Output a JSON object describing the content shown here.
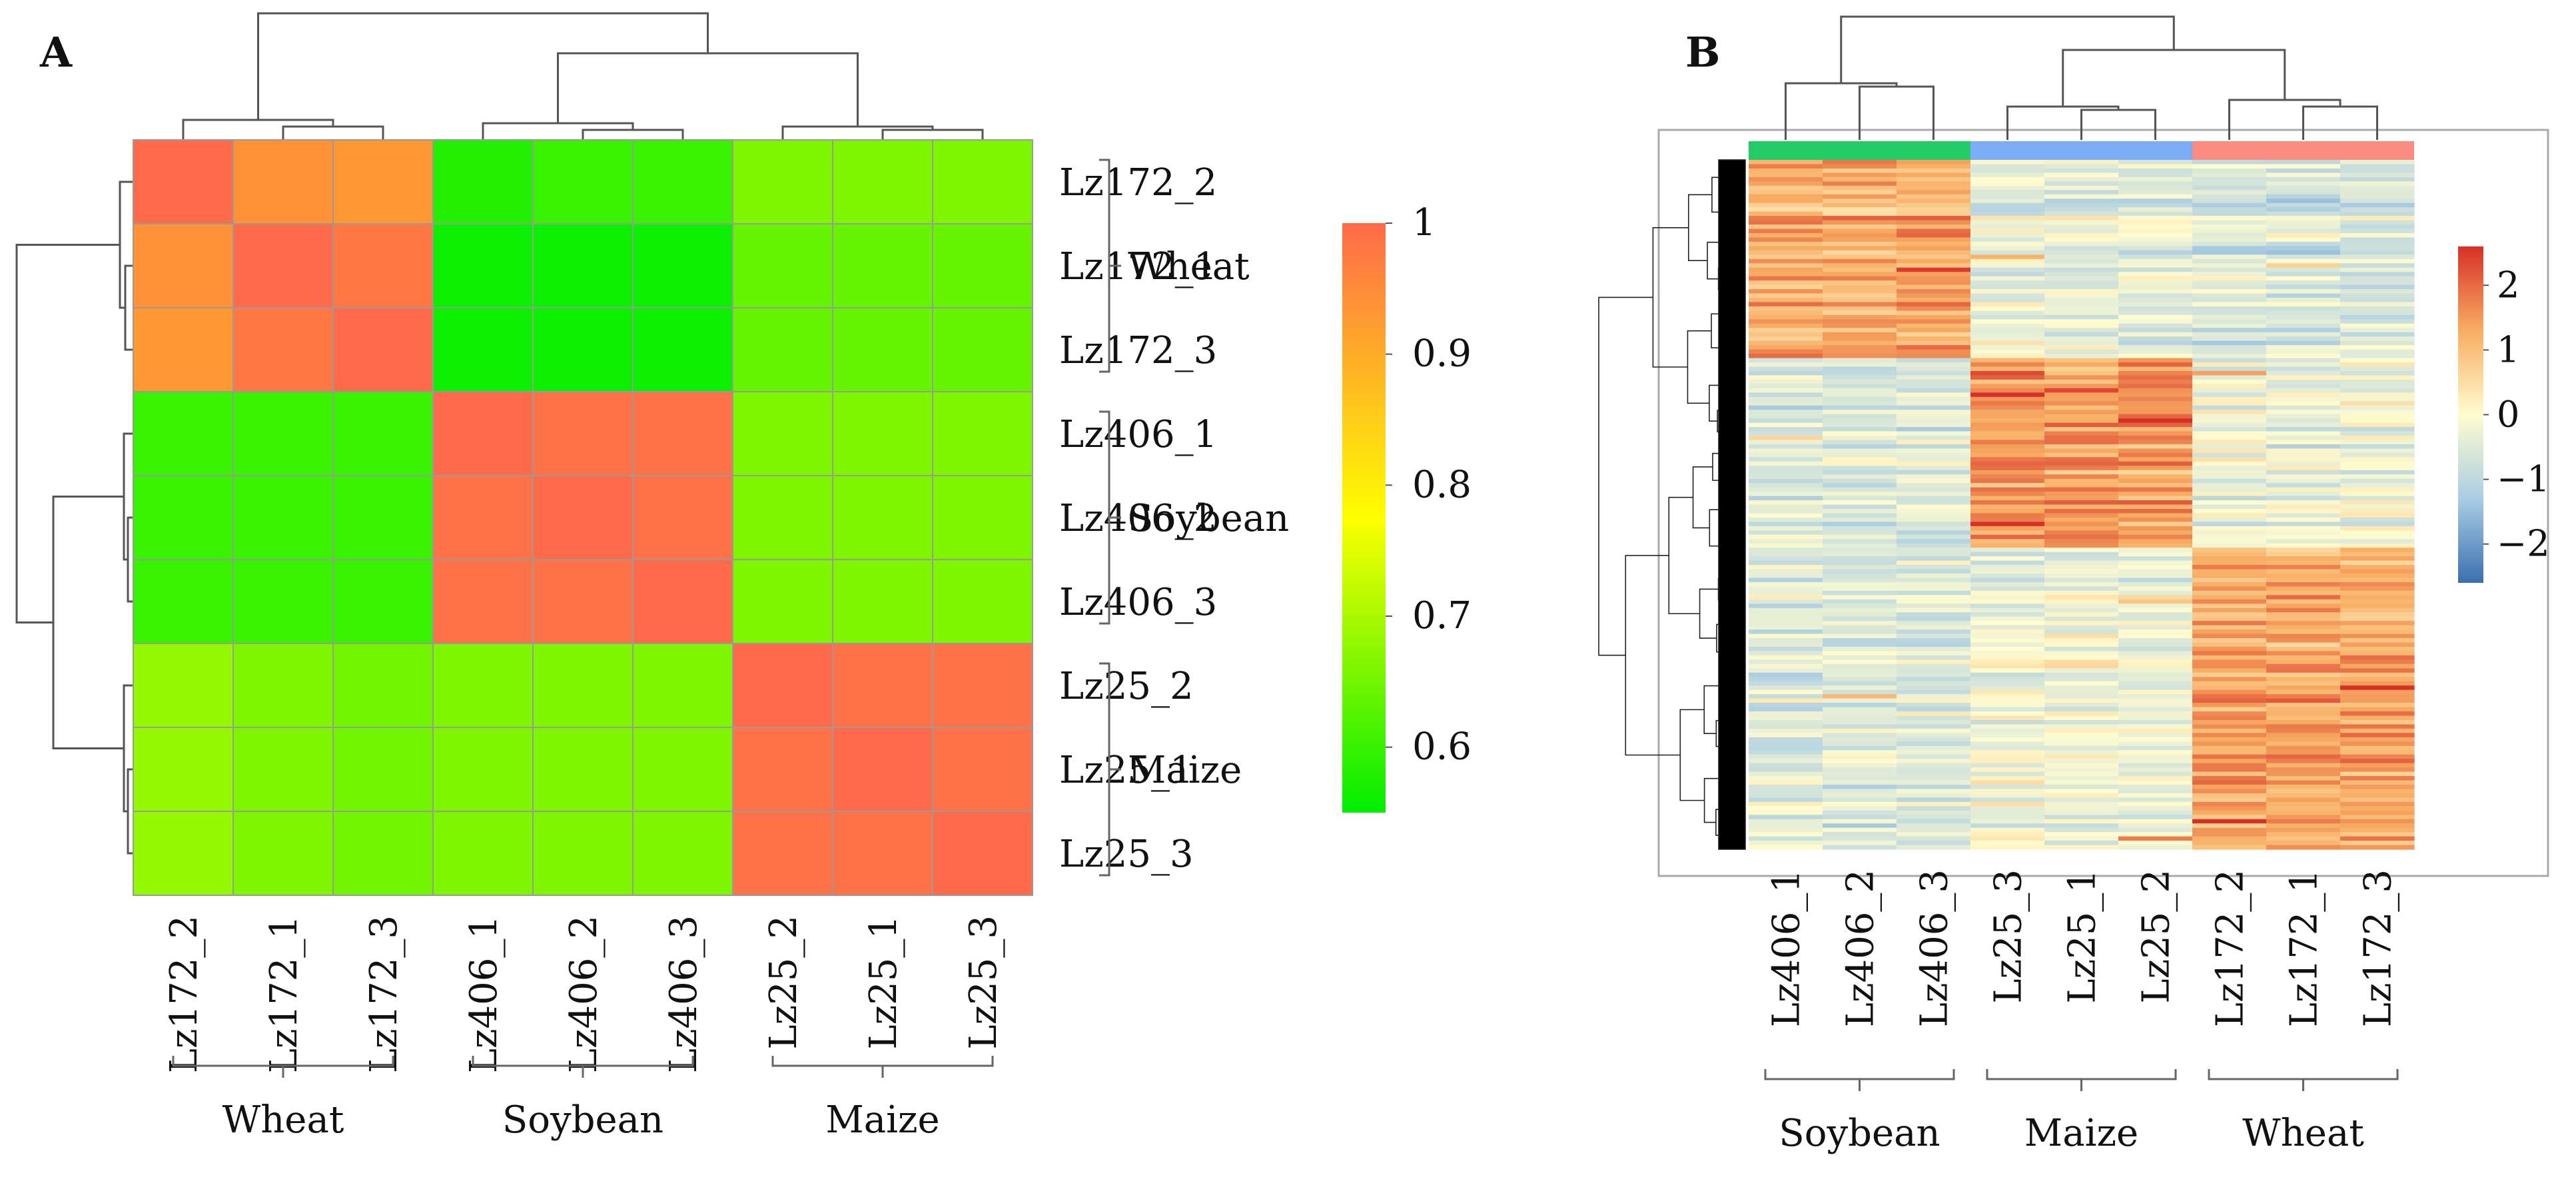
{
  "panels": {
    "a_label": "A",
    "b_label": "B"
  },
  "chart_data": [
    {
      "type": "heatmap",
      "panel": "A",
      "rows": [
        "Lz172_2",
        "Lz172_1",
        "Lz172_3",
        "Lz406_1",
        "Lz406_2",
        "Lz406_3",
        "Lz25_2",
        "Lz25_1",
        "Lz25_3"
      ],
      "columns": [
        "Lz172_2",
        "Lz172_1",
        "Lz172_3",
        "Lz406_1",
        "Lz406_2",
        "Lz406_3",
        "Lz25_2",
        "Lz25_1",
        "Lz25_3"
      ],
      "values": [
        [
          1.0,
          0.94,
          0.93,
          0.58,
          0.6,
          0.6,
          0.66,
          0.66,
          0.66
        ],
        [
          0.94,
          1.0,
          0.98,
          0.56,
          0.56,
          0.56,
          0.64,
          0.64,
          0.64
        ],
        [
          0.93,
          0.98,
          1.0,
          0.56,
          0.56,
          0.56,
          0.64,
          0.64,
          0.64
        ],
        [
          0.6,
          0.6,
          0.6,
          1.0,
          0.99,
          0.99,
          0.66,
          0.66,
          0.66
        ],
        [
          0.6,
          0.6,
          0.6,
          0.99,
          1.0,
          0.99,
          0.66,
          0.66,
          0.66
        ],
        [
          0.6,
          0.6,
          0.6,
          0.99,
          0.99,
          1.0,
          0.66,
          0.66,
          0.66
        ],
        [
          0.68,
          0.66,
          0.65,
          0.66,
          0.66,
          0.66,
          1.0,
          0.99,
          0.99
        ],
        [
          0.68,
          0.66,
          0.65,
          0.66,
          0.66,
          0.66,
          0.99,
          1.0,
          0.99
        ],
        [
          0.68,
          0.66,
          0.65,
          0.66,
          0.66,
          0.66,
          0.99,
          0.99,
          1.0
        ]
      ],
      "color_scale": {
        "range": [
          0.55,
          1.0
        ],
        "ticks": [
          "1",
          "0.9",
          "0.8",
          "0.7",
          "0.6"
        ],
        "tick_values": [
          1.0,
          0.9,
          0.8,
          0.7,
          0.6
        ],
        "colors": [
          "#00ee00",
          "#ffff00",
          "#ff6a4a"
        ]
      },
      "row_groups": [
        {
          "name": "Wheat",
          "rows": [
            "Lz172_2",
            "Lz172_1",
            "Lz172_3"
          ]
        },
        {
          "name": "Soybean",
          "rows": [
            "Lz406_1",
            "Lz406_2",
            "Lz406_3"
          ]
        },
        {
          "name": "Maize",
          "rows": [
            "Lz25_2",
            "Lz25_1",
            "Lz25_3"
          ]
        }
      ],
      "column_groups": [
        {
          "name": "Wheat",
          "columns": [
            "Lz172_2",
            "Lz172_1",
            "Lz172_3"
          ]
        },
        {
          "name": "Soybean",
          "columns": [
            "Lz406_1",
            "Lz406_2",
            "Lz406_3"
          ]
        },
        {
          "name": "Maize",
          "columns": [
            "Lz25_2",
            "Lz25_1",
            "Lz25_3"
          ]
        }
      ],
      "dendrograms": true
    },
    {
      "type": "heatmap",
      "panel": "B",
      "columns": [
        "Lz406_1",
        "Lz406_2",
        "Lz406_3",
        "Lz25_3",
        "Lz25_1",
        "Lz25_2",
        "Lz172_2",
        "Lz172_1",
        "Lz172_3"
      ],
      "column_groups": [
        {
          "name": "Soybean",
          "columns": [
            "Lz406_1",
            "Lz406_2",
            "Lz406_3"
          ],
          "color": "#22cc66"
        },
        {
          "name": "Maize",
          "columns": [
            "Lz25_3",
            "Lz25_1",
            "Lz25_2"
          ],
          "color": "#7aadf5"
        },
        {
          "name": "Wheat",
          "columns": [
            "Lz172_2",
            "Lz172_1",
            "Lz172_3"
          ],
          "color": "#fa8c82"
        }
      ],
      "row_blocks": [
        {
          "fraction": 0.29,
          "levels": [
            1.3,
            1.3,
            1.3,
            -0.4,
            -0.4,
            -0.4,
            -0.6,
            -0.6,
            -0.6
          ]
        },
        {
          "fraction": 0.27,
          "levels": [
            -0.6,
            -0.6,
            -0.6,
            1.4,
            1.4,
            1.4,
            -0.3,
            -0.3,
            -0.3
          ]
        },
        {
          "fraction": 0.44,
          "levels": [
            -0.5,
            -0.5,
            -0.5,
            -0.2,
            -0.2,
            -0.2,
            1.3,
            1.3,
            1.3
          ]
        }
      ],
      "row_count": 160,
      "color_scale": {
        "range": [
          -2.6,
          2.6
        ],
        "ticks": [
          "2",
          "1",
          "0",
          "−1",
          "−2"
        ],
        "tick_values": [
          2,
          1,
          0,
          -1,
          -2
        ],
        "colors": [
          "#3a6fb0",
          "#aacde3",
          "#fffcd0",
          "#f8ad63",
          "#d73027"
        ]
      },
      "dendrograms": true
    }
  ]
}
